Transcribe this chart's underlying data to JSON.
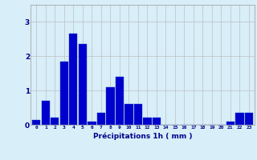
{
  "categories": [
    0,
    1,
    2,
    3,
    4,
    5,
    6,
    7,
    8,
    9,
    10,
    11,
    12,
    13,
    14,
    15,
    16,
    17,
    18,
    19,
    20,
    21,
    22,
    23
  ],
  "values": [
    0.15,
    0.7,
    0.2,
    1.85,
    2.65,
    2.35,
    0.1,
    0.35,
    1.1,
    1.4,
    0.6,
    0.6,
    0.2,
    0.2,
    0.0,
    0.0,
    0.0,
    0.0,
    0.0,
    0.0,
    0.0,
    0.1,
    0.35,
    0.35
  ],
  "bar_color": "#0000cc",
  "bar_edge_color": "#1a44cc",
  "background_color": "#d8eef8",
  "grid_color": "#c0c0c0",
  "text_color": "#00008b",
  "xlabel": "Précipitations 1h ( mm )",
  "ylim": [
    0,
    3.5
  ],
  "yticks": [
    0,
    1,
    2,
    3
  ],
  "figsize": [
    3.2,
    2.0
  ],
  "dpi": 100
}
